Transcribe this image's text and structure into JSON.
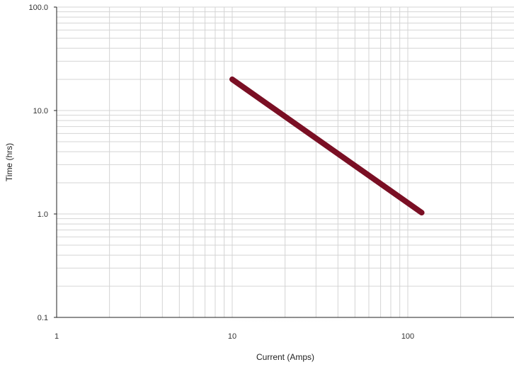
{
  "chart_data": {
    "type": "line",
    "xlabel": "Current (Amps)",
    "ylabel": "Time (hrs)",
    "x_scale": "log",
    "y_scale": "log",
    "xlim": [
      1,
      300
    ],
    "ylim": [
      0.1,
      100
    ],
    "x_tick_labels": [
      "1",
      "10",
      "100"
    ],
    "y_tick_labels": [
      "0.1",
      "1.0",
      "10.0",
      "100.0"
    ],
    "grid": true,
    "series": [
      {
        "x": [
          10,
          120
        ],
        "y": [
          20,
          1.03
        ]
      }
    ],
    "colors": {
      "series": "#7a0f24",
      "grid": "#d4d4d4",
      "axis": "#222222",
      "shadow": "#d8d8d8"
    }
  }
}
